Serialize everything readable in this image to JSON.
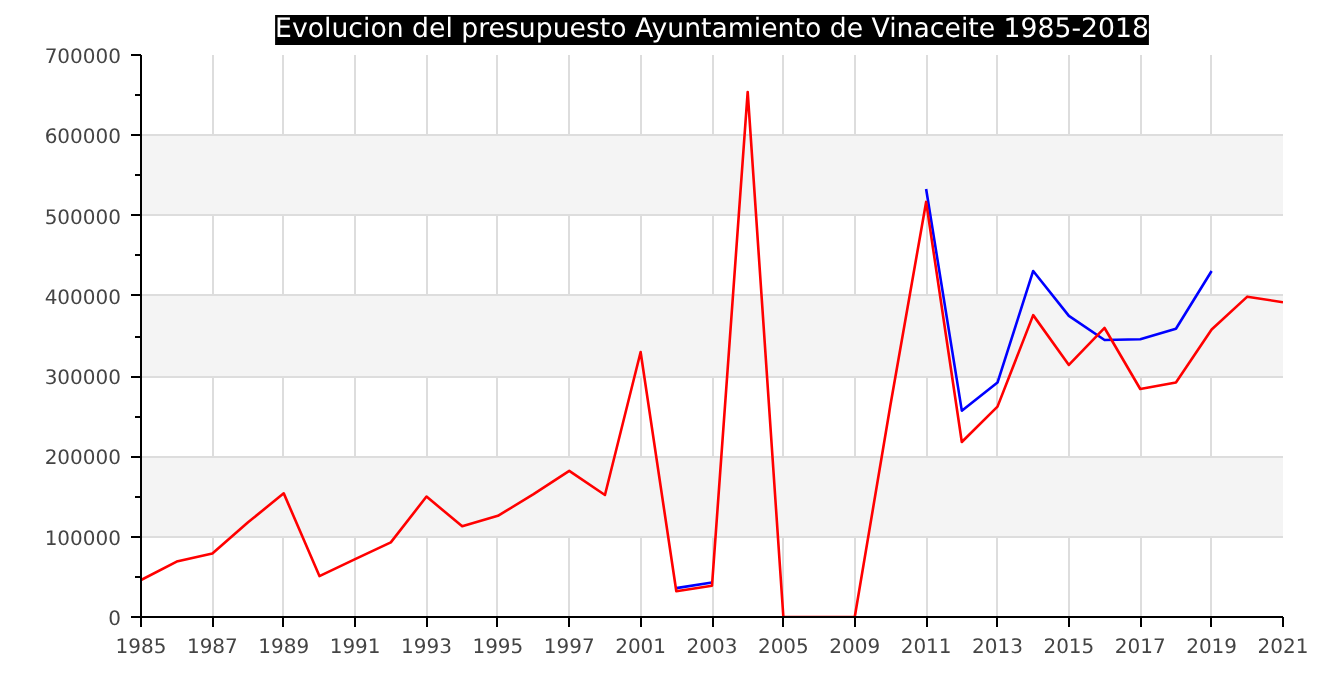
{
  "chart_data": {
    "type": "line",
    "title": "Evolucion del presupuesto Ayuntamiento de Vinaceite 1985-2018",
    "categories": [
      "1985",
      null,
      "1987",
      null,
      "1989",
      null,
      "1991",
      null,
      "1993",
      null,
      "1995",
      null,
      "1997",
      null,
      "2001",
      null,
      "2003",
      null,
      "2005",
      null,
      "2009",
      null,
      "2011",
      null,
      "2013",
      null,
      "2015",
      null,
      "2017",
      null,
      "2019",
      null,
      "2021"
    ],
    "series": [
      {
        "color": "#0000ff",
        "values": [
          null,
          null,
          null,
          null,
          null,
          null,
          null,
          null,
          null,
          null,
          null,
          null,
          null,
          null,
          null,
          36000,
          43000,
          null,
          null,
          null,
          null,
          null,
          533000,
          257000,
          292000,
          431000,
          375000,
          345000,
          346000,
          359000,
          431000,
          null,
          null
        ]
      },
      {
        "color": "#ff0000",
        "values": [
          46000,
          69000,
          79000,
          118000,
          154000,
          51000,
          72000,
          93000,
          150000,
          113000,
          126000,
          153000,
          182000,
          152000,
          330000,
          32000,
          39000,
          654000,
          0,
          0,
          0,
          264000,
          517000,
          218000,
          262000,
          376000,
          314000,
          360000,
          284000,
          292000,
          358000,
          399000,
          392000
        ]
      }
    ],
    "ylim": [
      0,
      700000
    ],
    "yticks": [
      0,
      100000,
      200000,
      300000,
      400000,
      500000,
      600000,
      700000
    ],
    "grid": true,
    "marker": "none",
    "line_style": "solid"
  }
}
